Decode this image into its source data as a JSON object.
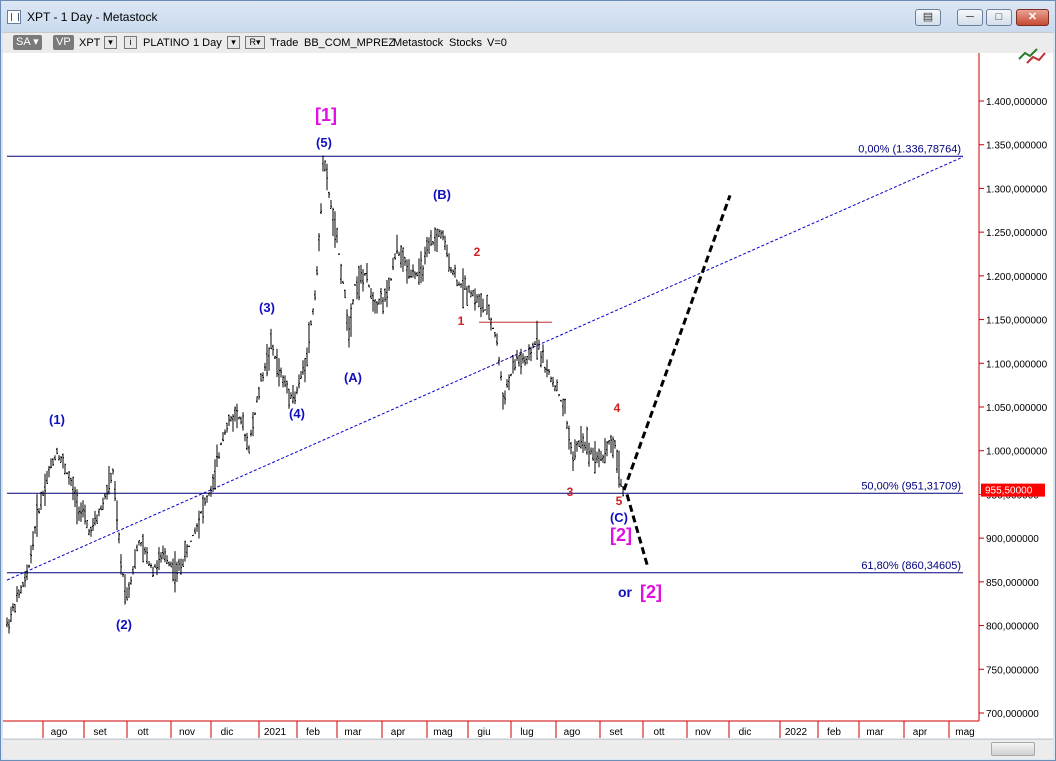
{
  "window": {
    "title": "XPT - 1 Day - Metastock",
    "buttons": {
      "minimize": "─",
      "maximize": "□",
      "close": "✕"
    }
  },
  "toolbar": {
    "sa": "SA",
    "vp": "VP",
    "symbol": "XPT",
    "name": "PLATINO",
    "period": "1 Day",
    "r": "R",
    "mode": "Trade",
    "account": "BB_COM_MPREZ",
    "source": "Metastock",
    "type": "Stocks",
    "version": "V=0"
  },
  "chart_data": {
    "type": "ohlc",
    "y_axis": {
      "min": 700000,
      "max": 1400000,
      "ticks": [
        "1.400,000000",
        "1.350,000000",
        "1.300,000000",
        "1.250,000000",
        "1.200,000000",
        "1.150,000000",
        "1.100,000000",
        "1.050,000000",
        "1.000,000000",
        "950,000000",
        "900,000000",
        "850,000000",
        "800,000000",
        "750,000000",
        "700,000000"
      ],
      "tick_values": [
        1400000,
        1350000,
        1300000,
        1250000,
        1200000,
        1150000,
        1100000,
        1050000,
        1000000,
        950000,
        900000,
        850000,
        800000,
        750000,
        700000
      ]
    },
    "x_axis": {
      "labels": [
        "ago",
        "set",
        "ott",
        "nov",
        "dic",
        "2021",
        "feb",
        "mar",
        "apr",
        "mag",
        "giu",
        "lug",
        "ago",
        "set",
        "ott",
        "nov",
        "dic",
        "2022",
        "feb",
        "mar",
        "apr",
        "mag"
      ]
    },
    "last_price_label": "955,50000",
    "last_price": 955500,
    "fib_levels": [
      {
        "label": "0,00% (1.336,78764)",
        "value": 1336787.64
      },
      {
        "label": "50,00% (951,31709)",
        "value": 951317.09
      },
      {
        "label": "61,80% (860,34605)",
        "value": 860346.05
      }
    ],
    "wave_labels": [
      {
        "text": "[1]",
        "color": "#e010e0"
      },
      {
        "text": "(5)",
        "color": "#1010c0"
      },
      {
        "text": "(B)",
        "color": "#1010c0"
      },
      {
        "text": "(3)",
        "color": "#1010c0"
      },
      {
        "text": "(4)",
        "color": "#1010c0"
      },
      {
        "text": "(A)",
        "color": "#1010c0"
      },
      {
        "text": "(1)",
        "color": "#1010c0"
      },
      {
        "text": "(2)",
        "color": "#1010c0"
      },
      {
        "text": "2",
        "color": "#d02020"
      },
      {
        "text": "1",
        "color": "#d02020"
      },
      {
        "text": "4",
        "color": "#d02020"
      },
      {
        "text": "3",
        "color": "#d02020"
      },
      {
        "text": "5",
        "color": "#d02020"
      },
      {
        "text": "(C)",
        "color": "#1010c0"
      },
      {
        "text": "[2]",
        "color": "#e010e0"
      },
      {
        "text": "or",
        "color": "#1010c0"
      },
      {
        "text": "[2]",
        "color": "#e010e0"
      }
    ],
    "colors": {
      "bars": "#000000",
      "fib_lines": "#00007f",
      "trendline": "#0000cc",
      "axis": "#cc0000",
      "price_tag": "#ff0000"
    }
  }
}
